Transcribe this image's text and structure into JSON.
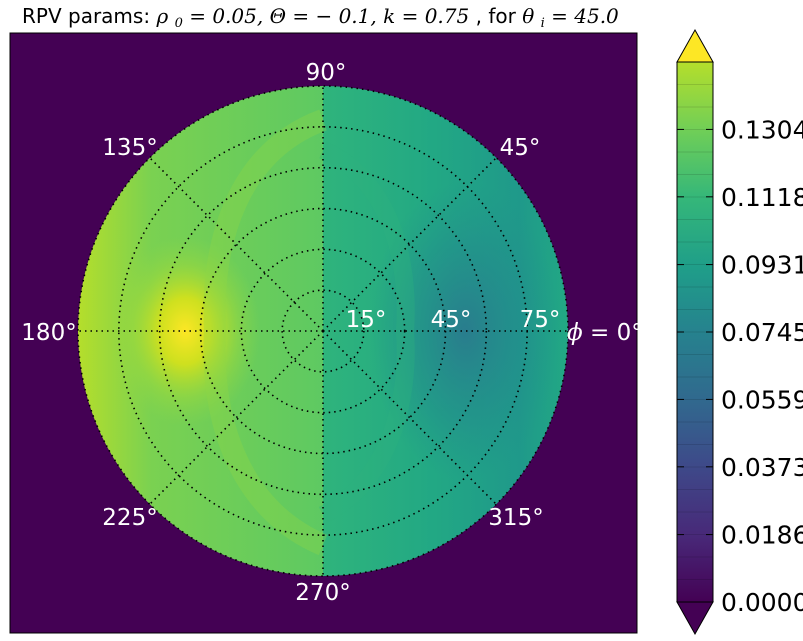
{
  "title": {
    "prefix": "RPV params: ",
    "rho": "ρ",
    "rho_sub": "0",
    "rho_val": " = 0.05, ",
    "theta_big": "Θ",
    "theta_val": " = − 0.1, ",
    "k": "k",
    "k_val": " = 0.75",
    "for_text": ", for ",
    "theta_i": "θ",
    "theta_i_sub": "i",
    "theta_i_val": " = 45.0"
  },
  "chart_data": {
    "type": "heatmap",
    "projection": "polar",
    "subtitle": "",
    "parameters": {
      "rho0": 0.05,
      "Theta": -0.1,
      "k": 0.75,
      "theta_i": 45.0
    },
    "azimuth_labels": [
      "90°",
      "45°",
      "135°",
      "180°",
      "225°",
      "270°",
      "315°"
    ],
    "azimuth_zero_label": {
      "symbol": "ϕ",
      "rest": " = 0°"
    },
    "radial_labels": [
      "15°",
      "45°",
      "75°"
    ],
    "radial_rings_deg": [
      15,
      30,
      45,
      60,
      75,
      90
    ],
    "azimuth_spokes_deg": [
      0,
      45,
      90,
      135,
      180,
      225,
      270,
      315
    ],
    "grid": true,
    "colormap": "viridis",
    "background_color": "#440154",
    "colorbar": {
      "ticks": [
        "0.1304",
        "0.1118",
        "0.0931",
        "0.0745",
        "0.0559",
        "0.0373",
        "0.0186",
        "0.0000"
      ],
      "tick_values": [
        0.1304,
        0.1118,
        0.0931,
        0.0745,
        0.0559,
        0.0373,
        0.0186,
        0.0
      ],
      "range": [
        0.0,
        0.149
      ],
      "extend": "both"
    },
    "field_regions": [
      {
        "region": "hotspot near phi=180°, theta=60°",
        "value": 0.145
      },
      {
        "region": "left half outer rim",
        "value": 0.13
      },
      {
        "region": "left half center",
        "value": 0.118
      },
      {
        "region": "right half center",
        "value": 0.095
      },
      {
        "region": "minimum near phi=0°, theta=60°",
        "value": 0.078
      },
      {
        "region": "right half outer rim",
        "value": 0.1
      }
    ]
  }
}
